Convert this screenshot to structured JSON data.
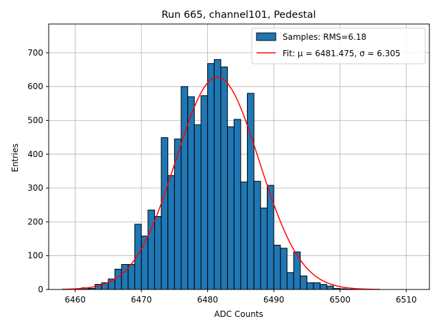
{
  "chart_data": {
    "type": "bar",
    "title": "Run 665, channel101, Pedestal",
    "xlabel": "ADC Counts",
    "ylabel": "Entries",
    "xlim": [
      6456,
      6513.5
    ],
    "ylim": [
      0,
      785
    ],
    "xticks": [
      6460,
      6470,
      6480,
      6490,
      6500,
      6510
    ],
    "yticks": [
      0,
      100,
      200,
      300,
      400,
      500,
      600,
      700
    ],
    "grid": true,
    "legend_position": "top-right",
    "bin_width": 1,
    "bin_start": 6459,
    "bin_counts": [
      1,
      1,
      5,
      3,
      15,
      20,
      31,
      60,
      74,
      74,
      193,
      158,
      235,
      216,
      449,
      337,
      445,
      600,
      570,
      487,
      573,
      668,
      680,
      658,
      481,
      503,
      318,
      580,
      320,
      241,
      308,
      131,
      122,
      50,
      111,
      40,
      20,
      20,
      15,
      10,
      3,
      2,
      1,
      1,
      1
    ],
    "series": [
      {
        "name": "Samples: RMS=6.18",
        "kind": "histogram",
        "color": "#1f77b4"
      },
      {
        "name": "Fit: μ = 6481.475, σ = 6.305",
        "kind": "gaussian",
        "color": "#ff0000",
        "amplitude": 628,
        "mu": 6481.475,
        "sigma": 6.305,
        "x_range": [
          6458,
          6506
        ]
      }
    ]
  }
}
